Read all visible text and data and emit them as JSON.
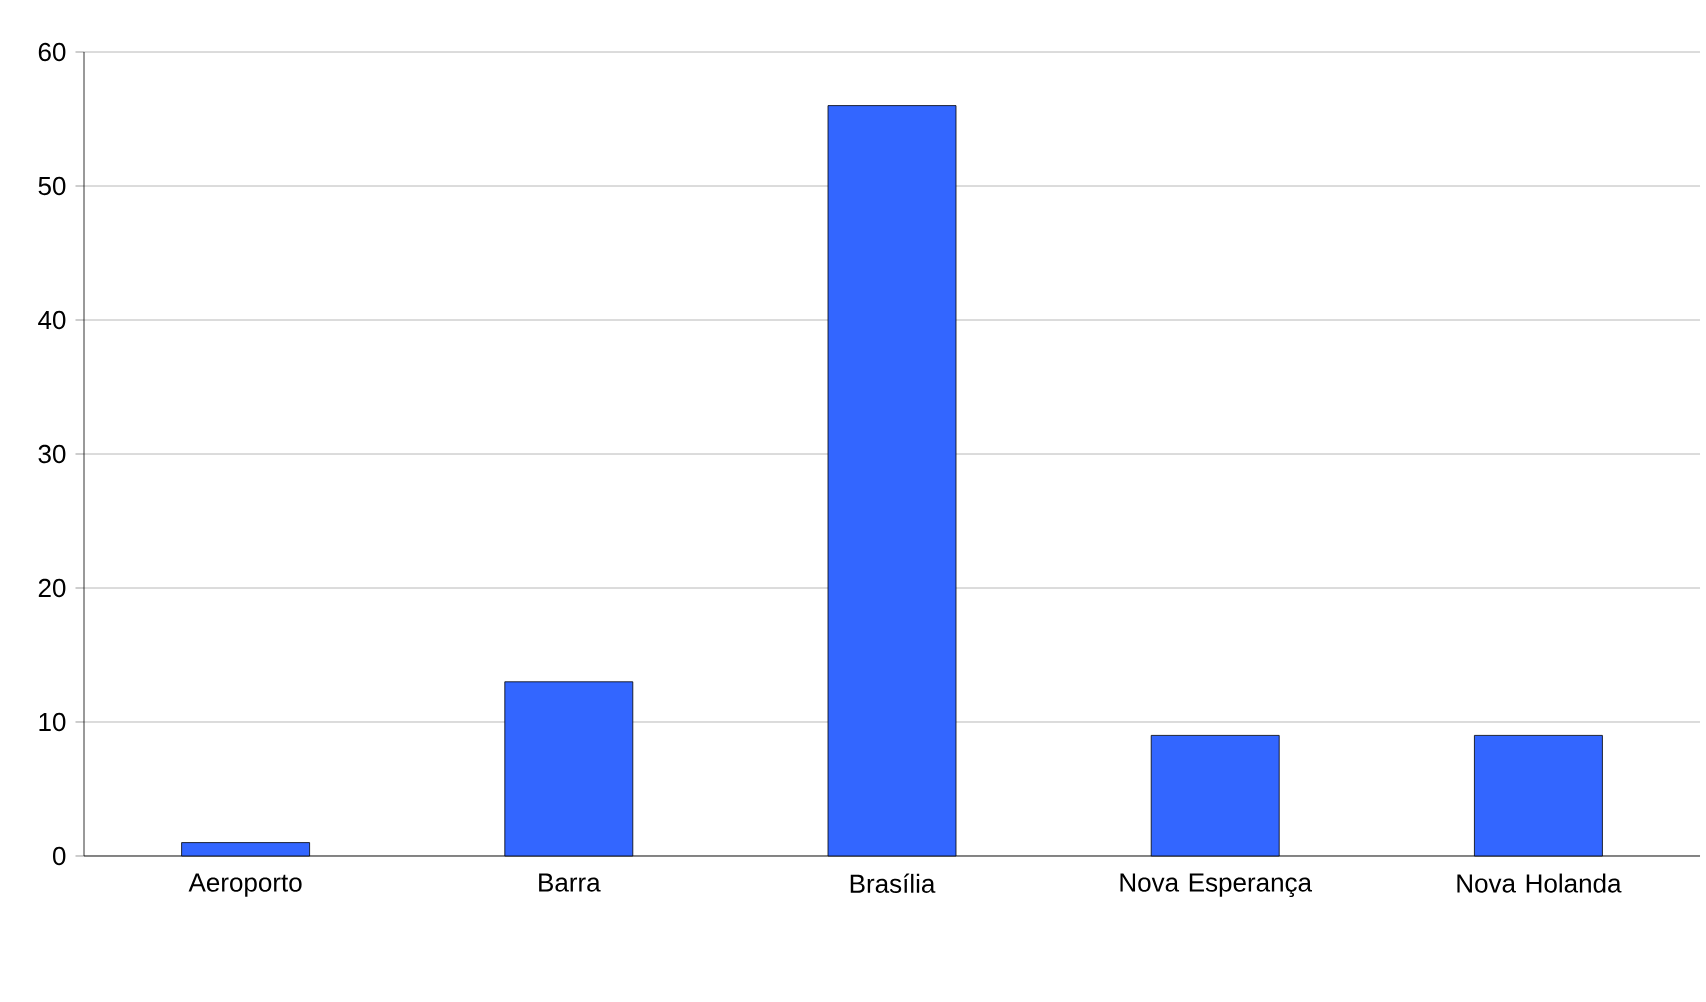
{
  "chart_data": {
    "type": "bar",
    "categories": [
      "Aeroporto",
      "Barra",
      "Brasília",
      "Nova Esperança",
      "Nova Holanda"
    ],
    "values": [
      1,
      13,
      56,
      9,
      9
    ],
    "color": "#3366ff",
    "ylim": [
      0,
      60
    ],
    "yticks": [
      0,
      10,
      20,
      30,
      40,
      50,
      60
    ],
    "grid": "y"
  }
}
